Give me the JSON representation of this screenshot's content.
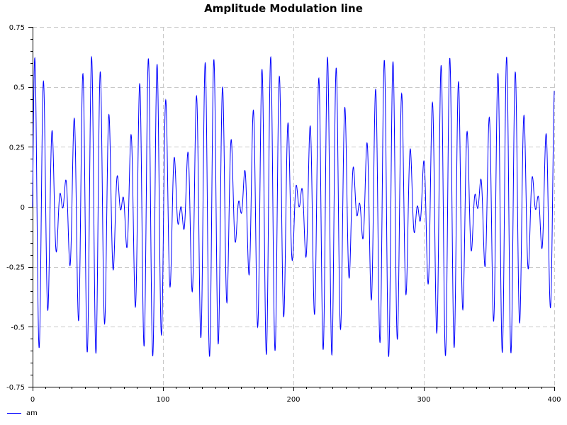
{
  "chart_data": {
    "type": "line",
    "title": "Amplitude Modulation line",
    "xlabel": "",
    "ylabel": "",
    "xlim": [
      0,
      400
    ],
    "ylim": [
      -0.75,
      0.75
    ],
    "x_ticks": [
      0,
      100,
      200,
      300,
      400
    ],
    "x_tick_labels": [
      "0",
      "100",
      "200",
      "300",
      "400"
    ],
    "y_ticks": [
      0.75,
      0.5,
      0.25,
      0,
      -0.25,
      -0.5,
      -0.75
    ],
    "y_tick_labels": [
      "0.75",
      "0.5",
      "0.25",
      "0",
      "-0.25",
      "-0.5",
      "-0.75"
    ],
    "grid": true,
    "legend_position": "bottom-left",
    "series": [
      {
        "name": "am",
        "color": "#0000ff",
        "x_start": 0,
        "x_end": 400,
        "samples": 4001,
        "formula": "0.625 * cos(2*pi*x/90.9) * sin(2*pi*x/6.7)",
        "envelope_amplitude": 0.625,
        "envelope_period": 90.9,
        "carrier_period": 6.7
      }
    ]
  }
}
